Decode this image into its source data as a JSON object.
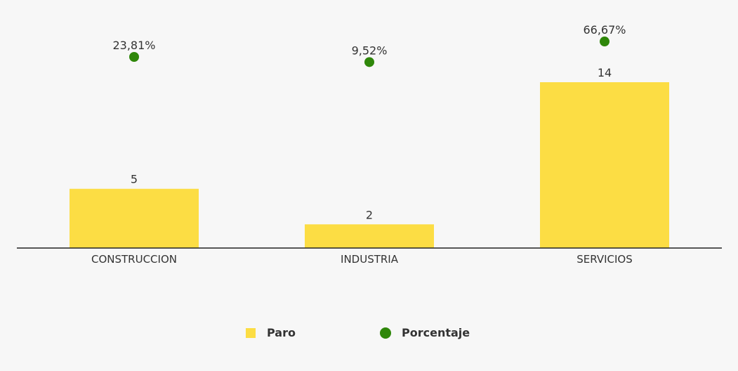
{
  "chart_data": {
    "type": "bar",
    "categories": [
      "CONSTRUCCION",
      "INDUSTRIA",
      "SERVICIOS"
    ],
    "series": [
      {
        "name": "Paro",
        "type": "bar",
        "values": [
          5,
          2,
          14
        ],
        "labels": [
          "5",
          "2",
          "14"
        ],
        "color": "#fcdd44"
      },
      {
        "name": "Porcentaje",
        "type": "scatter",
        "values": [
          23.81,
          9.52,
          66.67
        ],
        "labels": [
          "23,81%",
          "9,52%",
          "66,67%"
        ],
        "color": "#2f870a"
      }
    ],
    "legend": {
      "position": "bottom",
      "items": [
        "Paro",
        "Porcentaje"
      ]
    },
    "ylim_bar": [
      0,
      14
    ],
    "ylim_percent": [
      0,
      100
    ],
    "grid": false,
    "background": "#f7f7f7"
  }
}
